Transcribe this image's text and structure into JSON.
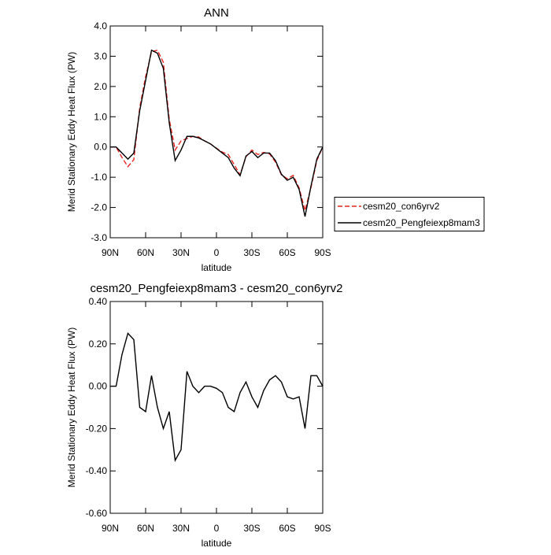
{
  "chart_data": [
    {
      "type": "line",
      "title": "ANN",
      "xlabel": "latitude",
      "ylabel": "Merid Stationary Eddy Heat Flux (PW)",
      "x": [
        90,
        85,
        80,
        75,
        70,
        65,
        60,
        55,
        50,
        45,
        40,
        35,
        30,
        25,
        20,
        15,
        10,
        5,
        0,
        -5,
        -10,
        -15,
        -20,
        -25,
        -30,
        -35,
        -40,
        -45,
        -50,
        -55,
        -60,
        -65,
        -70,
        -75,
        -80,
        -85,
        -90
      ],
      "series": [
        {
          "name": "cesm20_con6yrv2",
          "color": "#e8231e",
          "dash": true,
          "values": [
            0,
            0,
            -0.35,
            -0.65,
            -0.42,
            1.3,
            2.32,
            3.15,
            3.2,
            2.8,
            0.92,
            -0.1,
            0.2,
            0.28,
            0.35,
            0.33,
            0.2,
            0.1,
            -0.04,
            -0.17,
            -0.25,
            -0.58,
            -0.92,
            -0.32,
            -0.1,
            -0.25,
            -0.18,
            -0.23,
            -0.5,
            -0.92,
            -1.05,
            -0.94,
            -1.35,
            -2.1,
            -1.35,
            -0.45,
            0
          ]
        },
        {
          "name": "cesm20_Pengfeiexp8mam3",
          "color": "#000000",
          "dash": false,
          "values": [
            0,
            0,
            -0.2,
            -0.4,
            -0.2,
            1.2,
            2.2,
            3.2,
            3.1,
            2.6,
            0.8,
            -0.45,
            -0.1,
            0.35,
            0.35,
            0.3,
            0.2,
            0.1,
            -0.05,
            -0.2,
            -0.35,
            -0.7,
            -0.95,
            -0.3,
            -0.15,
            -0.35,
            -0.2,
            -0.2,
            -0.45,
            -0.9,
            -1.1,
            -1.0,
            -1.4,
            -2.3,
            -1.3,
            -0.4,
            0
          ]
        }
      ],
      "xlim": [
        90,
        -90
      ],
      "xticks": [
        {
          "value": 90,
          "label": "90N"
        },
        {
          "value": 60,
          "label": "60N"
        },
        {
          "value": 30,
          "label": "30N"
        },
        0,
        {
          "value": -30,
          "label": "30S"
        },
        {
          "value": -60,
          "label": "60S"
        },
        {
          "value": -90,
          "label": "90S"
        }
      ],
      "ylim": [
        -3,
        4
      ],
      "yticks": [
        {
          "value": 4,
          "label": "4.0"
        },
        {
          "value": 3,
          "label": "3.0"
        },
        {
          "value": 2,
          "label": "2.0"
        },
        {
          "value": 1,
          "label": "1.0"
        },
        {
          "value": 0,
          "label": "0.0"
        },
        {
          "value": -1,
          "label": "-1.0"
        },
        {
          "value": -2,
          "label": "-2.0"
        },
        {
          "value": -3,
          "label": "-3.0"
        }
      ],
      "legend": "right"
    },
    {
      "type": "line",
      "title": "cesm20_Pengfeiexp8mam3 - cesm20_con6yrv2",
      "xlabel": "latitude",
      "ylabel": "Merid Stationary Eddy Heat Flux (PW)",
      "x": [
        90,
        85,
        80,
        75,
        70,
        65,
        60,
        55,
        50,
        45,
        40,
        35,
        30,
        25,
        20,
        15,
        10,
        5,
        0,
        -5,
        -10,
        -15,
        -20,
        -25,
        -30,
        -35,
        -40,
        -45,
        -50,
        -55,
        -60,
        -65,
        -70,
        -75,
        -80,
        -85,
        -90
      ],
      "series": [
        {
          "color": "#000000",
          "dash": false,
          "values": [
            0,
            0,
            0.15,
            0.25,
            0.22,
            -0.1,
            -0.12,
            0.05,
            -0.1,
            -0.2,
            -0.12,
            -0.35,
            -0.3,
            0.07,
            0,
            -0.03,
            0,
            0,
            -0.01,
            -0.03,
            -0.1,
            -0.12,
            -0.03,
            0.02,
            -0.05,
            -0.1,
            -0.02,
            0.03,
            0.05,
            0.02,
            -0.05,
            -0.06,
            -0.05,
            -0.2,
            0.05,
            0.05,
            0
          ]
        }
      ],
      "xlim": [
        90,
        -90
      ],
      "xticks": [
        {
          "value": 90,
          "label": "90N"
        },
        {
          "value": 60,
          "label": "60N"
        },
        {
          "value": 30,
          "label": "30N"
        },
        0,
        {
          "value": -30,
          "label": "30S"
        },
        {
          "value": -60,
          "label": "60S"
        },
        {
          "value": -90,
          "label": "90S"
        }
      ],
      "ylim": [
        -0.6,
        0.4
      ],
      "yticks": [
        {
          "value": 0.4,
          "label": "0.40"
        },
        {
          "value": 0.2,
          "label": "0.20"
        },
        {
          "value": 0,
          "label": "0.00"
        },
        {
          "value": -0.2,
          "label": "-0.20"
        },
        {
          "value": -0.4,
          "label": "-0.40"
        },
        {
          "value": -0.6,
          "label": "-0.60"
        }
      ]
    }
  ]
}
